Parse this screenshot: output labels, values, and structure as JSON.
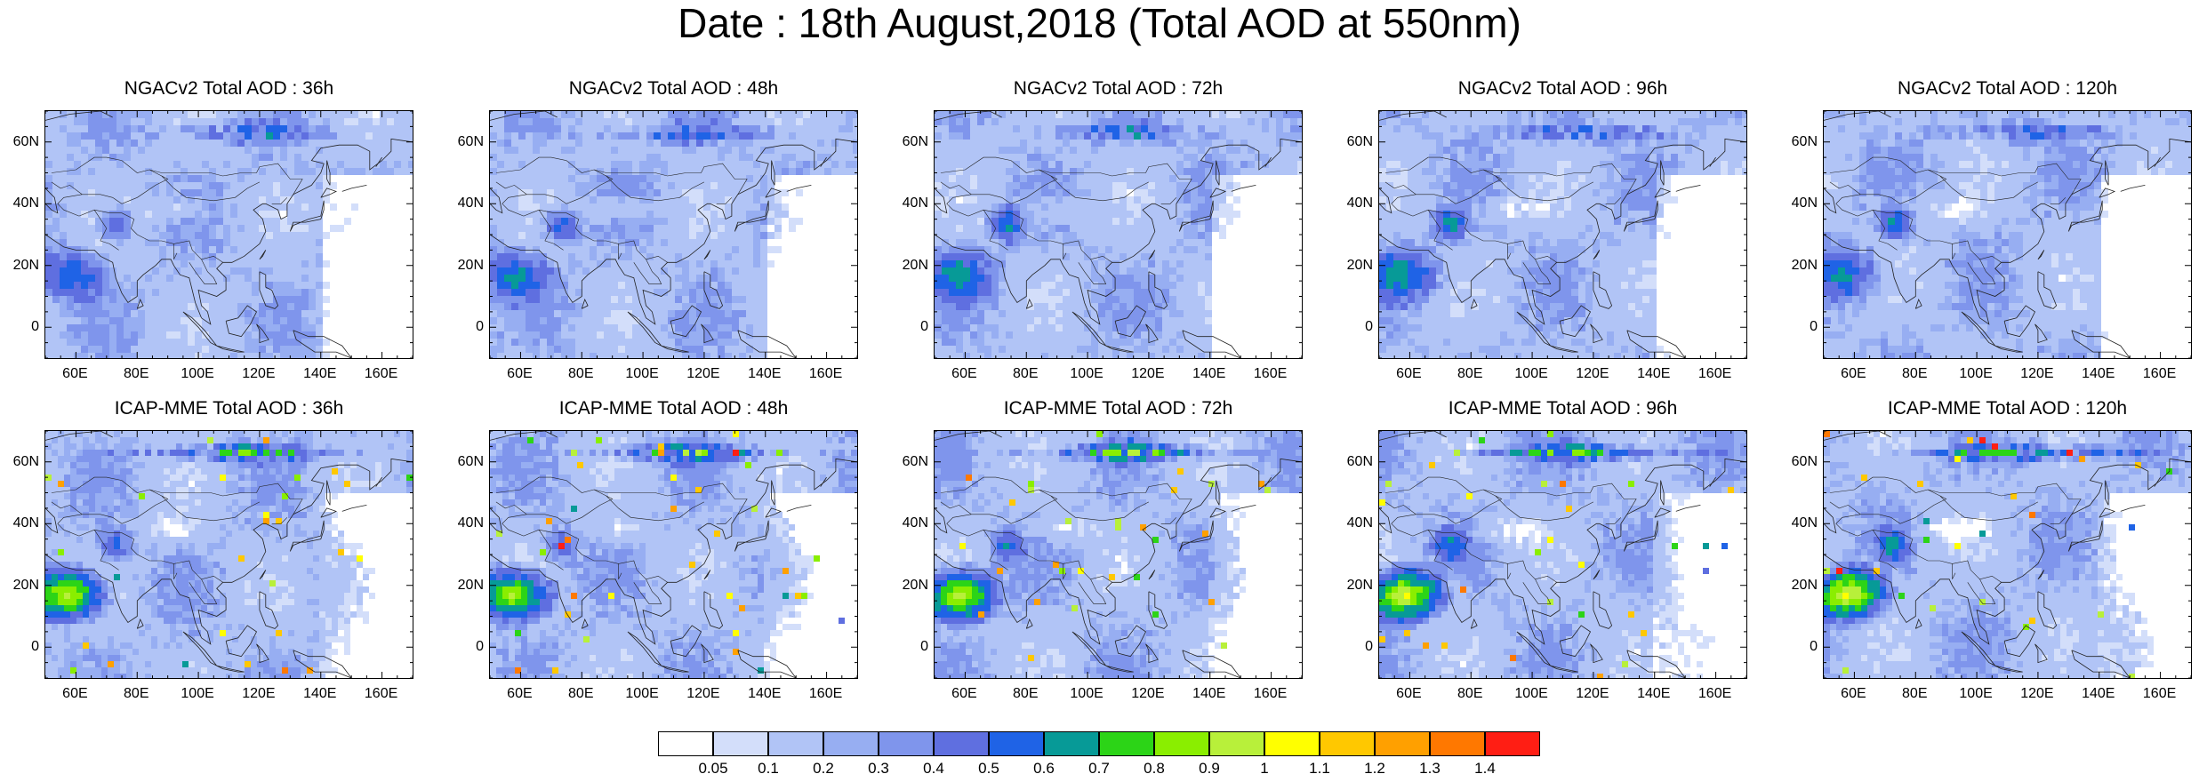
{
  "title": "Date : 18th August,2018 (Total AOD at 550nm)",
  "panels": [
    {
      "title": "NGACv2 Total AOD : 36h"
    },
    {
      "title": "NGACv2 Total AOD : 48h"
    },
    {
      "title": "NGACv2 Total AOD : 72h"
    },
    {
      "title": "NGACv2 Total AOD : 96h"
    },
    {
      "title": "NGACv2 Total AOD : 120h"
    },
    {
      "title": "ICAP-MME Total AOD : 36h"
    },
    {
      "title": "ICAP-MME Total AOD : 48h"
    },
    {
      "title": "ICAP-MME Total AOD : 72h"
    },
    {
      "title": "ICAP-MME Total AOD : 96h"
    },
    {
      "title": "ICAP-MME Total AOD : 120h"
    }
  ],
  "lat_ticks": [
    "60N",
    "40N",
    "20N",
    "0"
  ],
  "lon_ticks": [
    "60E",
    "80E",
    "100E",
    "120E",
    "140E",
    "160E"
  ],
  "map_extent": {
    "lon": [
      50,
      170
    ],
    "lat": [
      -10,
      70
    ]
  },
  "colorbar": {
    "colors": [
      "#ffffff",
      "#d3defa",
      "#b1c4f6",
      "#97aef2",
      "#7f95ec",
      "#5f6fe0",
      "#1f63e6",
      "#079a97",
      "#2cd417",
      "#8aee00",
      "#b8f03a",
      "#ffff00",
      "#ffc800",
      "#ffa000",
      "#ff7800",
      "#ff1e14"
    ],
    "labels": [
      "0.05",
      "0.1",
      "0.2",
      "0.3",
      "0.4",
      "0.5",
      "0.6",
      "0.7",
      "0.8",
      "0.9",
      "1",
      "1.1",
      "1.2",
      "1.3",
      "1.4"
    ]
  }
}
